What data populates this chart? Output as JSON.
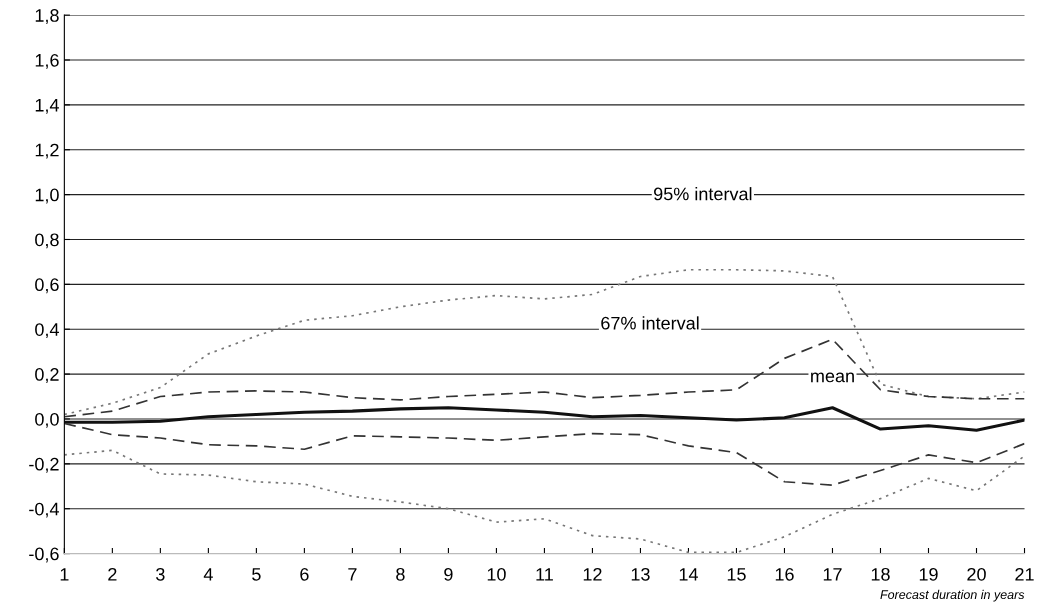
{
  "chart_data": {
    "type": "line",
    "x": [
      1,
      2,
      3,
      4,
      5,
      6,
      7,
      8,
      9,
      10,
      11,
      12,
      13,
      14,
      15,
      16,
      17,
      18,
      19,
      20,
      21
    ],
    "series": [
      {
        "color": "#777777",
        "line_style": "dotted",
        "values": [
          0.02,
          0.07,
          0.14,
          0.29,
          0.37,
          0.44,
          0.46,
          0.5,
          0.53,
          0.55,
          0.535,
          0.555,
          0.635,
          0.665,
          0.665,
          0.66,
          0.635,
          0.155,
          0.1,
          0.09,
          0.12
        ]
      },
      {
        "color": "#333333",
        "line_style": "dashed",
        "values": [
          0.01,
          0.035,
          0.1,
          0.12,
          0.125,
          0.12,
          0.095,
          0.085,
          0.1,
          0.11,
          0.12,
          0.095,
          0.105,
          0.12,
          0.13,
          0.27,
          0.355,
          0.13,
          0.1,
          0.09,
          0.09
        ]
      },
      {
        "color": "#111111",
        "line_style": "solid",
        "values": [
          -0.015,
          -0.015,
          -0.01,
          0.01,
          0.02,
          0.03,
          0.035,
          0.045,
          0.05,
          0.04,
          0.03,
          0.01,
          0.015,
          0.005,
          -0.005,
          0.005,
          0.05,
          -0.045,
          -0.03,
          -0.05,
          -0.005
        ]
      },
      {
        "color": "#333333",
        "line_style": "dashed",
        "values": [
          -0.02,
          -0.07,
          -0.085,
          -0.115,
          -0.12,
          -0.135,
          -0.075,
          -0.08,
          -0.085,
          -0.095,
          -0.08,
          -0.065,
          -0.07,
          -0.12,
          -0.15,
          -0.28,
          -0.295,
          -0.23,
          -0.16,
          -0.195,
          -0.11
        ]
      },
      {
        "color": "#777777",
        "line_style": "dotted",
        "values": [
          -0.16,
          -0.14,
          -0.245,
          -0.25,
          -0.28,
          -0.29,
          -0.345,
          -0.37,
          -0.4,
          -0.46,
          -0.445,
          -0.52,
          -0.535,
          -0.595,
          -0.595,
          -0.525,
          -0.425,
          -0.355,
          -0.265,
          -0.32,
          -0.165
        ]
      }
    ],
    "xlabel": "Forecast duration in years",
    "xlim": [
      1,
      21
    ],
    "xticks": [
      1,
      2,
      3,
      4,
      5,
      6,
      7,
      8,
      9,
      10,
      11,
      12,
      13,
      14,
      15,
      16,
      17,
      18,
      19,
      20,
      21
    ],
    "ylim": [
      -0.6,
      1.8
    ],
    "yticks": [
      {
        "value": -0.6,
        "label": "-0,6"
      },
      {
        "value": -0.4,
        "label": "-0,4"
      },
      {
        "value": -0.2,
        "label": "-0,2"
      },
      {
        "value": 0.0,
        "label": "0,0"
      },
      {
        "value": 0.2,
        "label": "0,2"
      },
      {
        "value": 0.4,
        "label": "0,4"
      },
      {
        "value": 0.6,
        "label": "0,6"
      },
      {
        "value": 0.8,
        "label": "0,8"
      },
      {
        "value": 1.0,
        "label": "1,0"
      },
      {
        "value": 1.2,
        "label": "1,2"
      },
      {
        "value": 1.4,
        "label": "1,4"
      },
      {
        "value": 1.6,
        "label": "1,6"
      },
      {
        "value": 1.8,
        "label": "1,8"
      }
    ],
    "grid": "y",
    "legend": false,
    "annotations": [
      "95% interval",
      "67% interval",
      "mean"
    ]
  }
}
